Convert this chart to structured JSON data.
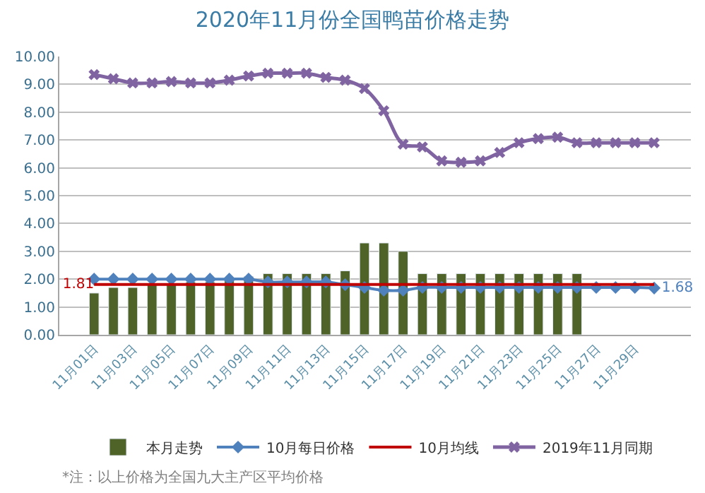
{
  "chart_data": {
    "type": "bar",
    "title": "2020年11月份全国鸭苗价格走势",
    "categories": [
      "11月01日",
      null,
      "11月03日",
      null,
      "11月05日",
      null,
      "11月07日",
      null,
      "11月09日",
      null,
      "11月11日",
      null,
      "11月13日",
      null,
      "11月15日",
      null,
      "11月17日",
      null,
      "11月19日",
      null,
      "11月21日",
      null,
      "11月23日",
      null,
      "11月25日",
      null,
      "11月27日",
      null,
      "11月29日",
      null
    ],
    "series": [
      {
        "name": "本月走势",
        "color": "#4f6228",
        "values": [
          1.5,
          1.7,
          1.7,
          1.8,
          1.8,
          1.9,
          1.9,
          2.0,
          2.1,
          2.2,
          2.2,
          2.2,
          2.2,
          2.3,
          3.3,
          3.3,
          3.0,
          2.2,
          2.2,
          2.2,
          2.2,
          2.2,
          2.2,
          2.2,
          2.2,
          2.2,
          null,
          null,
          null,
          null
        ]
      },
      {
        "name": "10月每日价格",
        "type": "line",
        "color": "#4f81bd",
        "marker": "diamond",
        "values": [
          2.0,
          2.0,
          2.0,
          2.0,
          2.0,
          2.0,
          2.0,
          2.0,
          2.0,
          1.9,
          1.9,
          1.9,
          1.9,
          1.8,
          1.7,
          1.6,
          1.6,
          1.7,
          1.7,
          1.7,
          1.7,
          1.7,
          1.7,
          1.7,
          1.7,
          1.7,
          1.7,
          1.7,
          1.7,
          1.68
        ],
        "value_labels": [
          null,
          null,
          null,
          null,
          null,
          null,
          null,
          null,
          null,
          null,
          null,
          null,
          null,
          null,
          null,
          null,
          null,
          null,
          null,
          null,
          null,
          null,
          null,
          null,
          null,
          null,
          null,
          null,
          null,
          "1.68"
        ]
      },
      {
        "name": "10月均线",
        "type": "line",
        "color": "#c00000",
        "marker": "none",
        "values": [
          1.81,
          1.81,
          1.81,
          1.81,
          1.81,
          1.81,
          1.81,
          1.81,
          1.81,
          1.81,
          1.81,
          1.81,
          1.81,
          1.81,
          1.81,
          1.81,
          1.81,
          1.81,
          1.81,
          1.81,
          1.81,
          1.81,
          1.81,
          1.81,
          1.81,
          1.81,
          1.81,
          1.81,
          1.81,
          1.81
        ],
        "value_labels": [
          "1.81",
          null,
          null,
          null,
          null,
          null,
          null,
          null,
          null,
          null,
          null,
          null,
          null,
          null,
          null,
          null,
          null,
          null,
          null,
          null,
          null,
          null,
          null,
          null,
          null,
          null,
          null,
          null,
          null,
          null
        ]
      },
      {
        "name": "2019年11月同期",
        "type": "line",
        "color": "#8064a2",
        "marker": "cross",
        "values": [
          9.35,
          9.2,
          9.05,
          9.05,
          9.1,
          9.05,
          9.05,
          9.15,
          9.3,
          9.4,
          9.4,
          9.4,
          9.25,
          9.15,
          8.85,
          8.05,
          6.85,
          6.75,
          6.25,
          6.2,
          6.25,
          6.55,
          6.9,
          7.05,
          7.1,
          6.9,
          6.9,
          6.9,
          6.9,
          6.9
        ]
      }
    ],
    "ylim": [
      0,
      10
    ],
    "yticks": [
      {
        "value": 0,
        "label": "0.00"
      },
      {
        "value": 1,
        "label": "1.00"
      },
      {
        "value": 2,
        "label": "2.00"
      },
      {
        "value": 3,
        "label": "3.00"
      },
      {
        "value": 4,
        "label": "4.00"
      },
      {
        "value": 5,
        "label": "5.00"
      },
      {
        "value": 6,
        "label": "6.00"
      },
      {
        "value": 7,
        "label": "7.00"
      },
      {
        "value": 8,
        "label": "8.00"
      },
      {
        "value": 9,
        "label": "9.00"
      },
      {
        "value": 10,
        "label": "10.00"
      }
    ],
    "grid": "y",
    "legend": "bottom",
    "annotations": [
      "*注：以上价格为全国九大主产区平均价格"
    ]
  }
}
